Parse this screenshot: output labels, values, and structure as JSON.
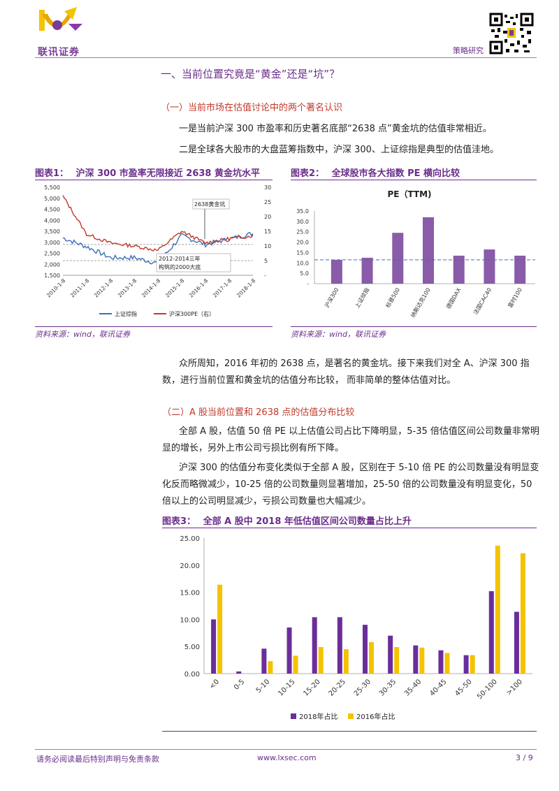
{
  "header": {
    "logo_text": "联讯证券",
    "section": "策略研究"
  },
  "section_title": "一、当前位置究竟是“黄金”还是“坑”？",
  "sub1": {
    "title": "（一）当前市场在估值讨论中的两个著名认识",
    "p1": "一是当前沪深 300 市盈率和历史著名底部“2638 点”黄金坑的估值非常相近。",
    "p2": "二是全球各大股市的大盘蓝筹指数中，沪深 300、上证综指是典型的估值洼地。"
  },
  "fig1": {
    "label": "图表1：",
    "title": "沪深 300 市盈率无限接近 2638 黄金坑水平",
    "source": "资料来源：wind，联讯证券",
    "annotation_top": "2638黄金坑",
    "annotation_bottom": "2012-2014三年构筑的2000大底",
    "legend": [
      "上证综指",
      "沪深300PE（右）"
    ],
    "y_left": [
      "5,500",
      "5,000",
      "4,500",
      "4,000",
      "3,500",
      "3,000",
      "2,500",
      "2,000",
      "1,500"
    ],
    "y_right": [
      "30",
      "25",
      "20",
      "15",
      "10",
      "5",
      "-"
    ],
    "x_ticks": [
      "2010-1-8",
      "2011-1-8",
      "2012-1-8",
      "2013-1-8",
      "2014-1-8",
      "2015-1-8",
      "2016-1-8",
      "2017-1-8",
      "2018-1-8"
    ],
    "colors": {
      "index": "#3b6fb6",
      "pe": "#c0392b"
    }
  },
  "fig2": {
    "label": "图表2：",
    "title": "全球股市各大指数 PE 横向比较",
    "source": "资料来源：wind，联讯证券",
    "chart_title": "PE（TTM)",
    "y_ticks": [
      "35.0",
      "30.0",
      "25.0",
      "20.0",
      "15.0",
      "10.0",
      "5.0",
      "-"
    ]
  },
  "sub2": {
    "intro": "众所周知，2016 年初的 2638 点，是著名的黄金坑。接下来我们对全 A、沪深 300 指数，进行当前位置和黄金坑的估值分布比较， 而非简单的整体估值对比。",
    "title": "（二）A 股当前位置和 2638 点的估值分布比较",
    "p1": "全部 A 股，估值 50 倍 PE 以上估值公司占比下降明显，5-35 倍估值区间公司数量非常明显的增长，另外上市公司亏损比例有所下降。",
    "p2": "沪深 300 的估值分布变化类似于全部 A 股，区别在于 5-10 倍 PE 的公司数量没有明显变化反而略微减少，10-25 倍的公司数量则显著增加，25-50 倍的公司数量没有明显变化，50 倍以上的公司明显减少，亏损公司数量也大幅减少。"
  },
  "fig3": {
    "label": "图表3：",
    "title": "全部 A 股中 2018 年低估值区间公司数量占比上升",
    "y_ticks": [
      "25.00",
      "20.00",
      "15.00",
      "10.00",
      "5.00",
      "0.00"
    ]
  },
  "chart_data": [
    {
      "type": "line",
      "title": "沪深 300 市盈率无限接近 2638 黄金坑水平",
      "x": [
        "2010-1-8",
        "2011-1-8",
        "2012-1-8",
        "2013-1-8",
        "2014-1-8",
        "2015-1-8",
        "2016-1-8",
        "2017-1-8",
        "2018-1-8"
      ],
      "series": [
        {
          "name": "上证综指",
          "axis": "left",
          "values": [
            3200,
            2800,
            2300,
            2300,
            2050,
            3300,
            2900,
            3150,
            3400
          ]
        },
        {
          "name": "沪深300PE（右）",
          "axis": "right",
          "values": [
            27,
            14,
            11,
            10,
            8.5,
            15,
            11,
            12.5,
            13.5
          ]
        }
      ],
      "ylim_left": [
        1500,
        5500
      ],
      "ylim_right": [
        0,
        30
      ],
      "reference_lines": [
        {
          "axis": "right",
          "value": 10.5
        },
        {
          "axis": "right",
          "value": 5
        }
      ]
    },
    {
      "type": "bar",
      "title": "PE（TTM)",
      "categories": [
        "沪深300",
        "上证综指",
        "标普500",
        "纳斯达克100",
        "德国DAX",
        "法国CAC40",
        "富时100"
      ],
      "values": [
        11.5,
        12.5,
        24.5,
        32.0,
        13.5,
        16.5,
        13.5
      ],
      "ylim": [
        0,
        35
      ],
      "reference_line": 11.5,
      "colors": {
        "bar": "#8a5ba8"
      }
    },
    {
      "type": "bar",
      "title": "全部 A 股中 2018 年低估值区间公司数量占比上升",
      "categories": [
        "<0",
        "0-5",
        "5-10",
        "10-15",
        "15-20",
        "20-25",
        "25-30",
        "30-35",
        "35-40",
        "40-45",
        "45-50",
        "50-100",
        ">100"
      ],
      "series": [
        {
          "name": "2018年占比",
          "values": [
            10.0,
            0.4,
            4.6,
            8.5,
            10.4,
            10.4,
            9.0,
            7.0,
            5.2,
            4.3,
            3.4,
            15.2,
            11.4
          ]
        },
        {
          "name": "2016年占比",
          "values": [
            16.4,
            0.0,
            2.3,
            3.3,
            4.9,
            4.5,
            5.8,
            4.9,
            4.8,
            3.8,
            3.4,
            23.6,
            22.2
          ]
        }
      ],
      "ylim": [
        0,
        25
      ],
      "colors": {
        "2018年占比": "#6b2d9b",
        "2016年占比": "#f5c200"
      }
    }
  ],
  "footer": {
    "disclaimer": "请务必阅读最后特别声明与免责条款",
    "url": "www.lxsec.com",
    "page": "3 / 9"
  }
}
